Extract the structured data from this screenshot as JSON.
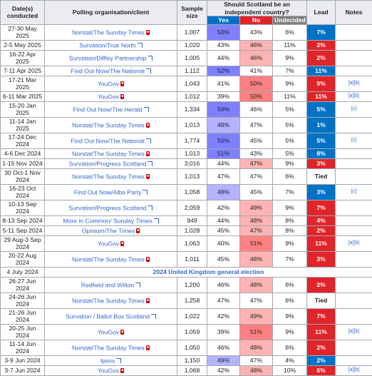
{
  "headers": {
    "dates": "Date(s) conducted",
    "pollster": "Polling organisation/client",
    "sample": "Sample size",
    "question": "Should Scotland be an independent country?",
    "yes": "Yes",
    "no": "No",
    "undecided": "Undecided",
    "lead": "Lead",
    "notes": "Notes"
  },
  "colors": {
    "yes_strong": "#8080ff",
    "yes_light": "#b3b3ff",
    "no_strong": "#ff8080",
    "no_light": "#ffb3b3",
    "lead_yes": "#0072c6",
    "lead_no": "#e0242a"
  },
  "rows": [
    {
      "dates": "27-30 May 2025",
      "client": "Norstat/The Sunday Times",
      "icon": "pdf",
      "sample": "1,007",
      "yes": "50%",
      "no": "43%",
      "und": "6%",
      "lead": "7%",
      "leadSide": "yes",
      "highlight": "yes",
      "shade": "strong",
      "notes": ""
    },
    {
      "dates": "2-5 May 2025",
      "client": "Survation/True North",
      "icon": "ext",
      "sample": "1,020",
      "yes": "43%",
      "no": "46%",
      "und": "11%",
      "lead": "2%",
      "leadSide": "no",
      "highlight": "no",
      "shade": "light",
      "notes": ""
    },
    {
      "dates": "16-22 Apr 2025",
      "client": "Survation/Diffley Partnership",
      "icon": "ext",
      "sample": "1,005",
      "yes": "44%",
      "no": "46%",
      "und": "9%",
      "lead": "2%",
      "leadSide": "no",
      "highlight": "no",
      "shade": "light",
      "notes": ""
    },
    {
      "dates": "7-11 Apr 2025",
      "client": "Find Out Now/The National",
      "icon": "ext",
      "sample": "1,112",
      "yes": "52%",
      "no": "41%",
      "und": "7%",
      "lead": "11%",
      "leadSide": "yes",
      "highlight": "yes",
      "shade": "strong",
      "notes": ""
    },
    {
      "dates": "17-21 Mar 2025",
      "client": "YouGov",
      "icon": "pdf",
      "sample": "1,043",
      "yes": "41%",
      "no": "50%",
      "und": "9%",
      "lead": "9%",
      "leadSide": "no",
      "highlight": "no",
      "shade": "strong",
      "notes": "[a][b]"
    },
    {
      "dates": "6-11 Mar 2025",
      "client": "YouGov",
      "icon": "pdf",
      "sample": "1,012",
      "yes": "39%",
      "no": "50%",
      "und": "11%",
      "lead": "11%",
      "leadSide": "no",
      "highlight": "no",
      "shade": "strong",
      "notes": "[a][b]"
    },
    {
      "dates": "15-20 Jan 2025",
      "client": "Find Out Now/The Herald",
      "icon": "ext",
      "sample": "1,334",
      "yes": "50%",
      "no": "46%",
      "und": "5%",
      "lead": "5%",
      "leadSide": "yes",
      "highlight": "yes",
      "shade": "strong",
      "notes": "[c]"
    },
    {
      "dates": "11-14 Jan 2025",
      "client": "Norstat/The Sunday Times",
      "icon": "pdf",
      "sample": "1,013",
      "yes": "48%",
      "no": "47%",
      "und": "5%",
      "lead": "1%",
      "leadSide": "yes",
      "highlight": "yes",
      "shade": "light",
      "notes": ""
    },
    {
      "dates": "17-24 Dec 2024",
      "client": "Find Out Now/The National",
      "icon": "ext",
      "sample": "1,774",
      "yes": "50%",
      "no": "45%",
      "und": "5%",
      "lead": "5%",
      "leadSide": "yes",
      "highlight": "yes",
      "shade": "strong",
      "notes": "[c]"
    },
    {
      "dates": "4-6 Dec 2024",
      "client": "Norstat/The Sunday Times",
      "icon": "pdf",
      "sample": "1,013",
      "yes": "51%",
      "no": "43%",
      "und": "5%",
      "lead": "8%",
      "leadSide": "yes",
      "highlight": "yes",
      "shade": "strong",
      "notes": ""
    },
    {
      "dates": "1-15 Nov 2024",
      "client": "Survation/Progress Scotland",
      "icon": "ext",
      "sample": "3,016",
      "yes": "44%",
      "no": "47%",
      "und": "9%",
      "lead": "3%",
      "leadSide": "no",
      "highlight": "no",
      "shade": "light",
      "notes": ""
    },
    {
      "dates": "30 Oct-1 Nov 2024",
      "client": "Norstat/The Sunday Times",
      "icon": "pdf",
      "sample": "1,013",
      "yes": "47%",
      "no": "47%",
      "und": "6%",
      "lead": "Tied",
      "leadSide": "tie",
      "highlight": "none",
      "shade": "light",
      "notes": ""
    },
    {
      "dates": "16-23 Oct 2024",
      "client": "Find Out Now/Alba Party",
      "icon": "ext",
      "sample": "1,058",
      "yes": "48%",
      "no": "45%",
      "und": "7%",
      "lead": "3%",
      "leadSide": "yes",
      "highlight": "yes",
      "shade": "light",
      "notes": "[c]"
    },
    {
      "dates": "10-13 Sep 2024",
      "client": "Survation/Progress Scotland",
      "icon": "ext",
      "sample": "2,059",
      "yes": "42%",
      "no": "49%",
      "und": "9%",
      "lead": "7%",
      "leadSide": "no",
      "highlight": "no",
      "shade": "light",
      "notes": ""
    },
    {
      "dates": "8-13 Sep 2024",
      "client": "More in Common/ Sunday Times",
      "icon": "ext",
      "sample": "949",
      "yes": "44%",
      "no": "48%",
      "und": "8%",
      "lead": "4%",
      "leadSide": "no",
      "highlight": "no",
      "shade": "light",
      "notes": ""
    },
    {
      "dates": "5-11 Sep 2024",
      "client": "Opinium/The Times",
      "icon": "pdf",
      "sample": "1,028",
      "yes": "45%",
      "no": "47%",
      "und": "8%",
      "lead": "2%",
      "leadSide": "no",
      "highlight": "no",
      "shade": "light",
      "notes": ""
    },
    {
      "dates": "29 Aug-3 Sep 2024",
      "client": "YouGov",
      "icon": "pdf",
      "sample": "1,063",
      "yes": "40%",
      "no": "51%",
      "und": "9%",
      "lead": "11%",
      "leadSide": "no",
      "highlight": "no",
      "shade": "strong",
      "notes": "[a][b]"
    },
    {
      "dates": "20-22 Aug 2024",
      "client": "Norstat/The Sunday Times",
      "icon": "pdf",
      "sample": "1,011",
      "yes": "45%",
      "no": "48%",
      "und": "7%",
      "lead": "3%",
      "leadSide": "no",
      "highlight": "no",
      "shade": "light",
      "notes": ""
    },
    {
      "event": true,
      "dates": "4 July 2024",
      "label": "2024 United Kingdom general election"
    },
    {
      "dates": "26-27 Jun 2024",
      "client": "Redfield and Wilton",
      "icon": "ext",
      "sample": "1,200",
      "yes": "46%",
      "no": "48%",
      "und": "6%",
      "lead": "2%",
      "leadSide": "no",
      "highlight": "no",
      "shade": "light",
      "notes": ""
    },
    {
      "dates": "24-26 Jun 2024",
      "client": "Norstat/The Sunday Times",
      "icon": "pdf",
      "sample": "1,258",
      "yes": "47%",
      "no": "47%",
      "und": "6%",
      "lead": "Tied",
      "leadSide": "tie",
      "highlight": "none",
      "shade": "light",
      "notes": ""
    },
    {
      "dates": "21-26 Jun 2024",
      "client": "Survation / Ballot Box Scotland",
      "icon": "ext",
      "sample": "1,022",
      "yes": "42%",
      "no": "49%",
      "und": "9%",
      "lead": "7%",
      "leadSide": "no",
      "highlight": "no",
      "shade": "light",
      "notes": ""
    },
    {
      "dates": "20-25 Jun 2024",
      "client": "YouGov",
      "icon": "pdf",
      "sample": "1,059",
      "yes": "39%",
      "no": "51%",
      "und": "9%",
      "lead": "11%",
      "leadSide": "no",
      "highlight": "no",
      "shade": "strong",
      "notes": "[a][b]"
    },
    {
      "dates": "11-14 Jun 2024",
      "client": "Norstat/The Sunday Times",
      "icon": "pdf",
      "sample": "1,050",
      "yes": "46%",
      "no": "48%",
      "und": "6%",
      "lead": "2%",
      "leadSide": "no",
      "highlight": "no",
      "shade": "light",
      "notes": ""
    },
    {
      "dates": "3-9 Jun 2024",
      "client": "Ipsos",
      "icon": "ext",
      "sample": "1,150",
      "yes": "49%",
      "no": "47%",
      "und": "4%",
      "lead": "2%",
      "leadSide": "yes",
      "highlight": "yes",
      "shade": "light",
      "notes": ""
    },
    {
      "dates": "3-7 Jun 2024",
      "client": "YouGov",
      "icon": "pdf",
      "sample": "1,068",
      "yes": "42%",
      "no": "48%",
      "und": "10%",
      "lead": "6%",
      "leadSide": "no",
      "highlight": "no",
      "shade": "light",
      "notes": "[a][b]"
    }
  ]
}
